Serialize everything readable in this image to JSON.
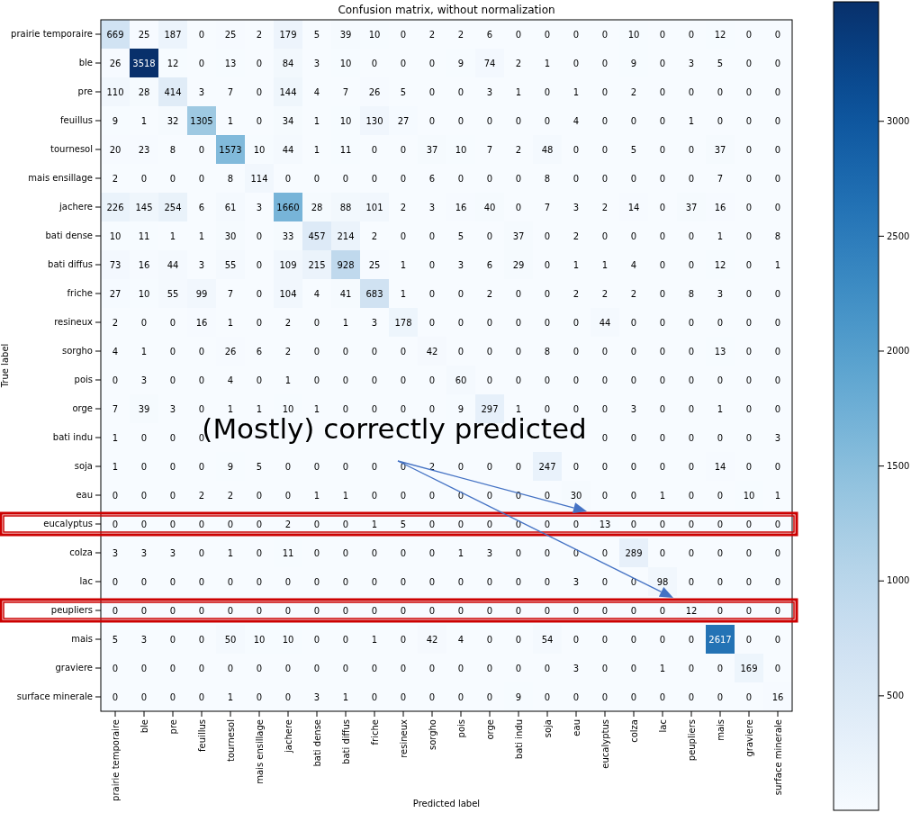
{
  "chart_data": {
    "type": "heatmap",
    "title": "Confusion matrix, without normalization",
    "xlabel": "Predicted label",
    "ylabel": "True label",
    "categories": [
      "prairie temporaire",
      "ble",
      "pre",
      "feuillus",
      "tournesol",
      "mais ensillage",
      "jachere",
      "bati dense",
      "bati diffus",
      "friche",
      "resineux",
      "sorgho",
      "pois",
      "orge",
      "bati indu",
      "soja",
      "eau",
      "eucalyptus",
      "colza",
      "lac",
      "peupliers",
      "mais",
      "graviere",
      "surface minerale"
    ],
    "y_categories": [
      "prairie temporaire",
      "ble",
      "pre",
      "feuillus",
      "tournesol",
      "mais ensillage",
      "jachere",
      "bati dense",
      "bati diffus",
      "friche",
      "resineux",
      "sorgho",
      "pois",
      "orge",
      "bati indu",
      "soja",
      "eau",
      "eucalyptus",
      "colza",
      "lac",
      "peupliers",
      "mais",
      "graviere",
      "surface minerale"
    ],
    "cells": [
      [
        669,
        25,
        187,
        0,
        25,
        2,
        179,
        5,
        39,
        10,
        0,
        2,
        2,
        6,
        0,
        0,
        0,
        0,
        10,
        0,
        0,
        12,
        0,
        0
      ],
      [
        26,
        3518,
        12,
        0,
        13,
        0,
        84,
        3,
        10,
        0,
        0,
        0,
        9,
        74,
        2,
        1,
        0,
        0,
        9,
        0,
        3,
        5,
        0,
        0
      ],
      [
        110,
        28,
        414,
        3,
        7,
        0,
        144,
        4,
        7,
        26,
        5,
        0,
        0,
        3,
        1,
        0,
        1,
        0,
        2,
        0,
        0,
        0,
        0,
        0
      ],
      [
        9,
        1,
        32,
        1305,
        1,
        0,
        34,
        1,
        10,
        130,
        27,
        0,
        0,
        0,
        0,
        0,
        4,
        0,
        0,
        0,
        1,
        0,
        0,
        0
      ],
      [
        20,
        23,
        8,
        0,
        1573,
        10,
        44,
        1,
        11,
        0,
        0,
        37,
        10,
        7,
        2,
        48,
        0,
        0,
        5,
        0,
        0,
        37,
        0,
        0
      ],
      [
        2,
        0,
        0,
        0,
        8,
        114,
        0,
        0,
        0,
        0,
        0,
        6,
        0,
        0,
        0,
        8,
        0,
        0,
        0,
        0,
        0,
        7,
        0,
        0
      ],
      [
        226,
        145,
        254,
        6,
        61,
        3,
        1660,
        28,
        88,
        101,
        2,
        3,
        16,
        40,
        0,
        7,
        3,
        2,
        14,
        0,
        37,
        16,
        0,
        0
      ],
      [
        10,
        11,
        1,
        1,
        30,
        0,
        33,
        457,
        214,
        2,
        0,
        0,
        5,
        0,
        37,
        0,
        2,
        0,
        0,
        0,
        0,
        1,
        0,
        8
      ],
      [
        73,
        16,
        44,
        3,
        55,
        0,
        109,
        215,
        928,
        25,
        1,
        0,
        3,
        6,
        29,
        0,
        1,
        1,
        4,
        0,
        0,
        12,
        0,
        1
      ],
      [
        27,
        10,
        55,
        99,
        7,
        0,
        104,
        4,
        41,
        683,
        1,
        0,
        0,
        2,
        0,
        0,
        2,
        2,
        2,
        0,
        8,
        3,
        0,
        0
      ],
      [
        2,
        0,
        0,
        16,
        1,
        0,
        2,
        0,
        1,
        3,
        178,
        0,
        0,
        0,
        0,
        0,
        0,
        44,
        0,
        0,
        0,
        0,
        0,
        0
      ],
      [
        4,
        1,
        0,
        0,
        26,
        6,
        2,
        0,
        0,
        0,
        0,
        42,
        0,
        0,
        0,
        8,
        0,
        0,
        0,
        0,
        0,
        13,
        0,
        0
      ],
      [
        0,
        3,
        0,
        0,
        4,
        0,
        1,
        0,
        0,
        0,
        0,
        0,
        60,
        0,
        0,
        0,
        0,
        0,
        0,
        0,
        0,
        0,
        0,
        0
      ],
      [
        7,
        39,
        3,
        0,
        1,
        1,
        10,
        1,
        0,
        0,
        0,
        0,
        9,
        297,
        1,
        0,
        0,
        0,
        3,
        0,
        0,
        1,
        0,
        0
      ],
      [
        1,
        0,
        0,
        0,
        null,
        null,
        null,
        null,
        null,
        null,
        null,
        null,
        null,
        null,
        null,
        null,
        null,
        0,
        0,
        0,
        0,
        0,
        0,
        3
      ],
      [
        1,
        0,
        0,
        0,
        9,
        5,
        0,
        0,
        0,
        0,
        0,
        2,
        0,
        0,
        0,
        247,
        0,
        0,
        0,
        0,
        0,
        14,
        0,
        0
      ],
      [
        0,
        0,
        0,
        2,
        2,
        0,
        0,
        1,
        1,
        0,
        0,
        0,
        0,
        0,
        0,
        0,
        30,
        0,
        0,
        1,
        0,
        0,
        10,
        1
      ],
      [
        0,
        0,
        0,
        0,
        0,
        0,
        2,
        0,
        0,
        1,
        5,
        0,
        0,
        0,
        0,
        0,
        0,
        13,
        0,
        0,
        0,
        0,
        0,
        0
      ],
      [
        3,
        3,
        3,
        0,
        1,
        0,
        11,
        0,
        0,
        0,
        0,
        0,
        1,
        3,
        0,
        0,
        0,
        0,
        289,
        0,
        0,
        0,
        0,
        0
      ],
      [
        0,
        0,
        0,
        0,
        0,
        0,
        0,
        0,
        0,
        0,
        0,
        0,
        0,
        0,
        0,
        0,
        3,
        0,
        0,
        98,
        0,
        0,
        0,
        0
      ],
      [
        0,
        0,
        0,
        0,
        0,
        0,
        0,
        0,
        0,
        0,
        0,
        0,
        0,
        0,
        0,
        0,
        0,
        0,
        0,
        0,
        12,
        0,
        0,
        0
      ],
      [
        5,
        3,
        0,
        0,
        50,
        10,
        10,
        0,
        0,
        1,
        0,
        42,
        4,
        0,
        0,
        54,
        0,
        0,
        0,
        0,
        0,
        2617,
        0,
        0
      ],
      [
        0,
        0,
        0,
        0,
        0,
        0,
        0,
        0,
        0,
        0,
        0,
        0,
        0,
        0,
        0,
        0,
        3,
        0,
        0,
        1,
        0,
        0,
        169,
        0
      ],
      [
        0,
        0,
        0,
        0,
        1,
        0,
        0,
        3,
        1,
        0,
        0,
        0,
        0,
        0,
        9,
        0,
        0,
        0,
        0,
        0,
        0,
        0,
        0,
        16
      ]
    ],
    "data_labels": true,
    "clim": [
      0,
      3518
    ],
    "cticks": [
      500,
      1000,
      1500,
      2000,
      2500,
      3000
    ],
    "annotations": [
      "(Mostly) correctly predicted"
    ]
  }
}
